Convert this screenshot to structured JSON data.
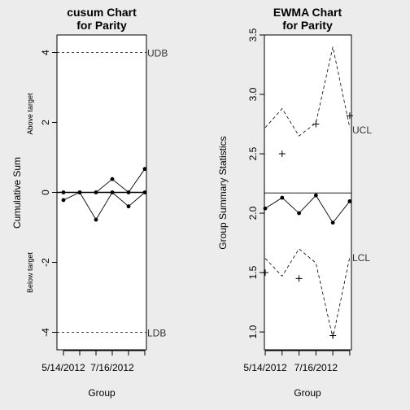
{
  "chart_data": [
    {
      "type": "line",
      "title": [
        "cusum Chart",
        "for Parity"
      ],
      "xlabel": "Group",
      "ylabel": "Cumulative Sum",
      "above_label": "Above target",
      "below_label": "Below target",
      "ylim": [
        -4.5,
        4.5
      ],
      "yticks": [
        -4,
        -2,
        0,
        2,
        4
      ],
      "xlim": [
        0.6,
        6.1
      ],
      "x": [
        1,
        2,
        3,
        4,
        5,
        6
      ],
      "xtick_labels": [
        {
          "x": 1,
          "label": "5/14/2012"
        },
        {
          "x": 4,
          "label": "7/16/2012"
        }
      ],
      "limits": [
        {
          "value": 4,
          "label": "UDB"
        },
        {
          "value": -4,
          "label": "LDB"
        }
      ],
      "center": 0,
      "series": [
        {
          "values": [
            0,
            0,
            0,
            0.38,
            0,
            0.67
          ],
          "marker": "dot",
          "line": "solid"
        },
        {
          "values": [
            -0.22,
            0,
            -0.78,
            0,
            -0.4,
            0
          ],
          "marker": "dot",
          "line": "solid"
        }
      ]
    },
    {
      "type": "line",
      "title": [
        "EWMA Chart",
        "for Parity"
      ],
      "xlabel": "Group",
      "ylabel": "Group Summary Statistics",
      "ylim": [
        0.85,
        3.5
      ],
      "yticks": [
        1.0,
        1.5,
        2.0,
        2.5,
        3.0,
        3.5
      ],
      "xlim": [
        0.95,
        6.1
      ],
      "x": [
        1,
        2,
        3,
        4,
        5,
        6
      ],
      "xtick_labels": [
        {
          "x": 1,
          "label": "5/14/2012"
        },
        {
          "x": 4,
          "label": "7/16/2012"
        }
      ],
      "center": 2.17,
      "ewma": [
        2.04,
        2.13,
        2.0,
        2.15,
        1.92,
        2.1
      ],
      "group_stats": [
        1.5,
        2.5,
        1.45,
        2.75,
        0.97,
        2.82
      ],
      "ucl": [
        2.72,
        2.88,
        2.65,
        2.76,
        3.4,
        2.72
      ],
      "lcl": [
        1.62,
        1.47,
        1.7,
        1.58,
        0.95,
        1.63
      ],
      "ucl_label": "UCL",
      "lcl_label": "LCL"
    }
  ]
}
